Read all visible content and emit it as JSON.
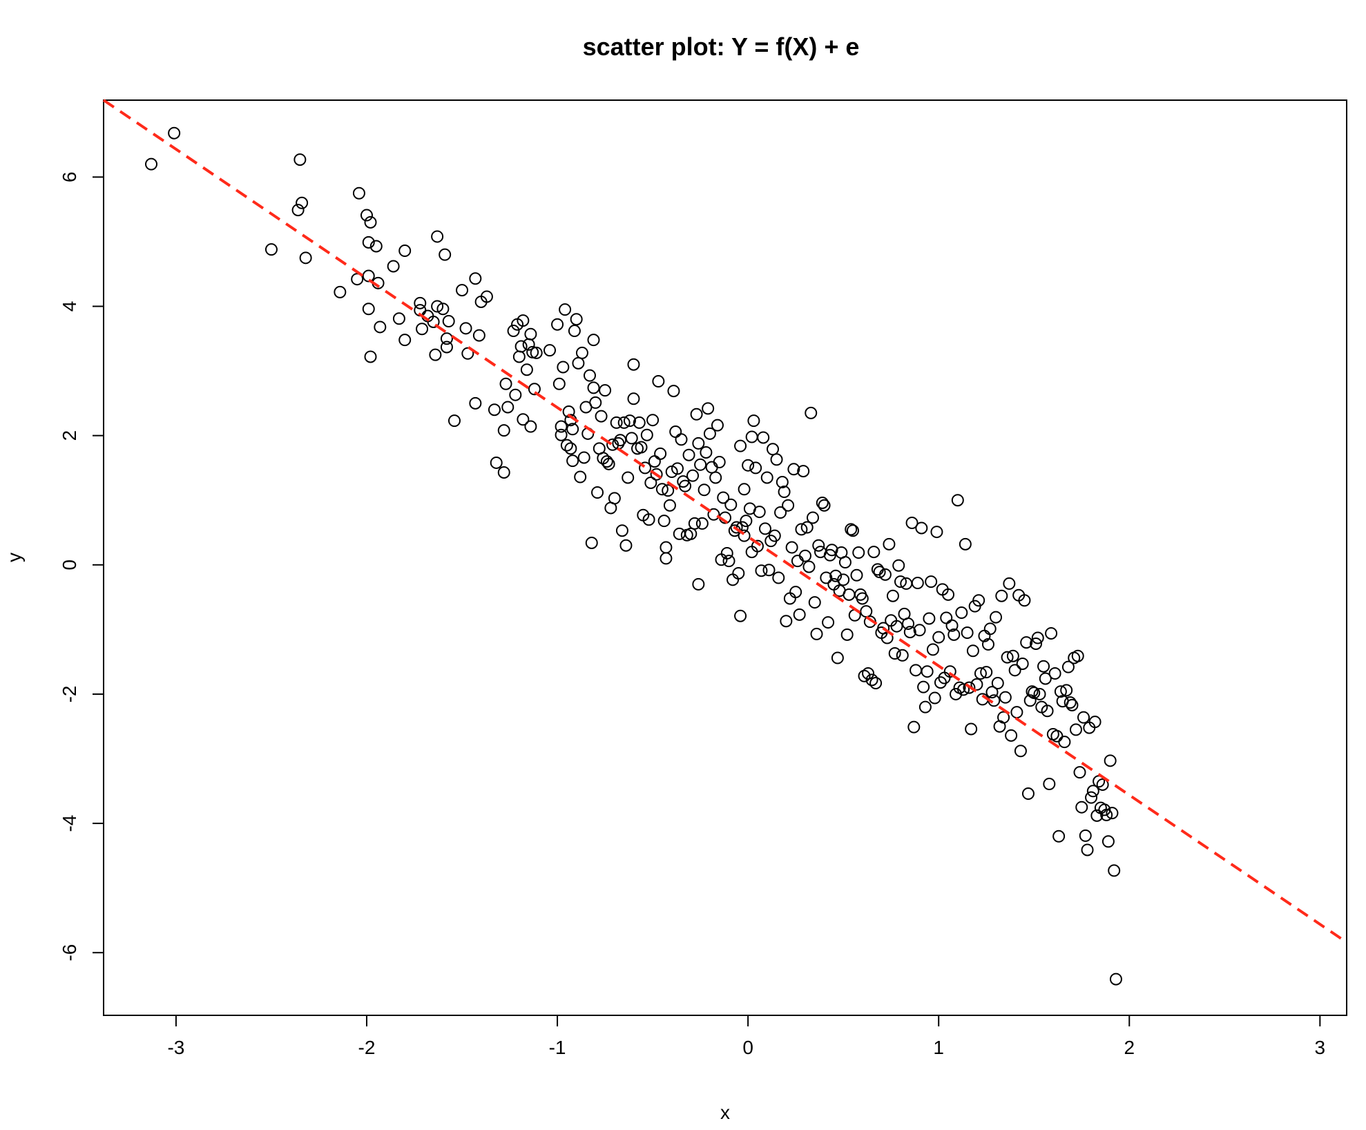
{
  "chart_data": {
    "type": "scatter",
    "title": "scatter plot: Y = f(X) + e",
    "xlabel": "x",
    "ylabel": "y",
    "xlim": [
      -3.38,
      3.14
    ],
    "ylim": [
      -6.97,
      7.19
    ],
    "x_ticks": [
      -3,
      -2,
      -1,
      0,
      1,
      2,
      3
    ],
    "y_ticks": [
      -6,
      -4,
      -2,
      0,
      2,
      4,
      6
    ],
    "x_tick_labels": [
      "-3",
      "-2",
      "-1",
      "0",
      "1",
      "2",
      "3"
    ],
    "y_tick_labels": [
      "-6",
      "-4",
      "-2",
      "0",
      "2",
      "4",
      "6"
    ],
    "grid": false,
    "points_color": "#000000",
    "line": {
      "style": "dashed",
      "color": "#ff2a1a",
      "points": [
        [
          -3.38,
          7.19
        ],
        [
          3.14,
          -5.84
        ]
      ]
    },
    "points": [
      [
        -3.13,
        6.2
      ],
      [
        -3.01,
        6.68
      ],
      [
        -2.5,
        4.88
      ],
      [
        -2.35,
        6.27
      ],
      [
        -2.36,
        5.49
      ],
      [
        -2.34,
        5.6
      ],
      [
        -2.32,
        4.75
      ],
      [
        -2.14,
        4.22
      ],
      [
        -2.05,
        4.42
      ],
      [
        -2.04,
        5.75
      ],
      [
        -2.0,
        5.41
      ],
      [
        -1.98,
        5.3
      ],
      [
        -1.99,
        4.99
      ],
      [
        -1.99,
        4.47
      ],
      [
        -1.99,
        3.96
      ],
      [
        -1.98,
        3.22
      ],
      [
        -1.95,
        4.93
      ],
      [
        -1.94,
        4.36
      ],
      [
        -1.93,
        3.68
      ],
      [
        -1.86,
        4.62
      ],
      [
        -1.83,
        3.81
      ],
      [
        -1.8,
        4.86
      ],
      [
        -1.8,
        3.48
      ],
      [
        -1.72,
        3.94
      ],
      [
        -1.72,
        4.05
      ],
      [
        -1.71,
        3.65
      ],
      [
        -1.68,
        3.85
      ],
      [
        -1.65,
        3.76
      ],
      [
        -1.64,
        3.25
      ],
      [
        -1.63,
        4.0
      ],
      [
        -1.6,
        3.96
      ],
      [
        -1.63,
        5.08
      ],
      [
        -1.59,
        4.8
      ],
      [
        -1.58,
        3.5
      ],
      [
        -1.58,
        3.37
      ],
      [
        -1.57,
        3.77
      ],
      [
        -1.54,
        2.23
      ],
      [
        -1.5,
        4.25
      ],
      [
        -1.48,
        3.66
      ],
      [
        -1.47,
        3.27
      ],
      [
        -1.43,
        4.43
      ],
      [
        -1.41,
        3.55
      ],
      [
        -1.4,
        4.07
      ],
      [
        -1.37,
        4.15
      ],
      [
        -1.43,
        2.5
      ],
      [
        -1.33,
        2.4
      ],
      [
        -1.32,
        1.58
      ],
      [
        -1.28,
        1.43
      ],
      [
        -1.28,
        2.08
      ],
      [
        -1.27,
        2.8
      ],
      [
        -1.26,
        2.44
      ],
      [
        -1.23,
        3.62
      ],
      [
        -1.22,
        2.63
      ],
      [
        -1.21,
        3.72
      ],
      [
        -1.2,
        3.22
      ],
      [
        -1.19,
        3.38
      ],
      [
        -1.18,
        3.78
      ],
      [
        -1.18,
        2.25
      ],
      [
        -1.16,
        3.02
      ],
      [
        -1.15,
        3.41
      ],
      [
        -1.14,
        3.57
      ],
      [
        -1.13,
        3.29
      ],
      [
        -1.14,
        2.14
      ],
      [
        -1.12,
        2.72
      ],
      [
        -1.11,
        3.28
      ],
      [
        -1.04,
        3.32
      ],
      [
        -1.0,
        3.72
      ],
      [
        -0.99,
        2.8
      ],
      [
        -0.98,
        2.14
      ],
      [
        -0.98,
        2.01
      ],
      [
        -0.97,
        3.06
      ],
      [
        -0.96,
        3.95
      ],
      [
        -0.95,
        1.85
      ],
      [
        -0.94,
        2.37
      ],
      [
        -0.93,
        1.8
      ],
      [
        -0.93,
        2.24
      ],
      [
        -0.92,
        2.1
      ],
      [
        -0.92,
        1.61
      ],
      [
        -0.91,
        3.62
      ],
      [
        -0.9,
        3.8
      ],
      [
        -0.89,
        3.12
      ],
      [
        -0.88,
        1.36
      ],
      [
        -0.87,
        3.28
      ],
      [
        -0.86,
        1.66
      ],
      [
        -0.85,
        2.44
      ],
      [
        -0.84,
        2.03
      ],
      [
        -0.83,
        2.93
      ],
      [
        -0.82,
        0.34
      ],
      [
        -0.81,
        2.74
      ],
      [
        -0.81,
        3.48
      ],
      [
        -0.8,
        2.51
      ],
      [
        -0.79,
        1.12
      ],
      [
        -0.78,
        1.8
      ],
      [
        -0.77,
        2.3
      ],
      [
        -0.76,
        1.65
      ],
      [
        -0.75,
        2.7
      ],
      [
        -0.74,
        1.6
      ],
      [
        -0.73,
        1.56
      ],
      [
        -0.72,
        0.88
      ],
      [
        -0.71,
        1.86
      ],
      [
        -0.7,
        1.03
      ],
      [
        -0.69,
        2.2
      ],
      [
        -0.68,
        1.88
      ],
      [
        -0.67,
        1.93
      ],
      [
        -0.66,
        0.53
      ],
      [
        -0.65,
        2.2
      ],
      [
        -0.64,
        0.3
      ],
      [
        -0.63,
        1.35
      ],
      [
        -0.62,
        2.23
      ],
      [
        -0.61,
        1.96
      ],
      [
        -0.6,
        2.57
      ],
      [
        -0.6,
        3.1
      ],
      [
        -0.58,
        1.8
      ],
      [
        -0.57,
        2.2
      ],
      [
        -0.56,
        1.82
      ],
      [
        -0.55,
        0.77
      ],
      [
        -0.54,
        1.5
      ],
      [
        -0.53,
        2.01
      ],
      [
        -0.52,
        0.7
      ],
      [
        -0.51,
        1.27
      ],
      [
        -0.5,
        2.24
      ],
      [
        -0.49,
        1.6
      ],
      [
        -0.48,
        1.4
      ],
      [
        -0.47,
        2.84
      ],
      [
        -0.46,
        1.72
      ],
      [
        -0.45,
        1.17
      ],
      [
        -0.44,
        0.68
      ],
      [
        -0.43,
        0.27
      ],
      [
        -0.43,
        0.1
      ],
      [
        -0.42,
        1.15
      ],
      [
        -0.41,
        0.92
      ],
      [
        -0.4,
        1.44
      ],
      [
        -0.39,
        2.69
      ],
      [
        -0.38,
        2.06
      ],
      [
        -0.37,
        1.49
      ],
      [
        -0.36,
        0.48
      ],
      [
        -0.35,
        1.94
      ],
      [
        -0.34,
        1.29
      ],
      [
        -0.33,
        1.22
      ],
      [
        -0.32,
        0.46
      ],
      [
        -0.31,
        1.7
      ],
      [
        -0.3,
        0.48
      ],
      [
        -0.29,
        1.38
      ],
      [
        -0.28,
        0.64
      ],
      [
        -0.27,
        2.33
      ],
      [
        -0.26,
        1.88
      ],
      [
        -0.26,
        -0.3
      ],
      [
        -0.25,
        1.55
      ],
      [
        -0.24,
        0.64
      ],
      [
        -0.23,
        1.16
      ],
      [
        -0.22,
        1.74
      ],
      [
        -0.21,
        2.42
      ],
      [
        -0.2,
        2.03
      ],
      [
        -0.19,
        1.51
      ],
      [
        -0.18,
        0.78
      ],
      [
        -0.17,
        1.35
      ],
      [
        -0.16,
        2.16
      ],
      [
        -0.15,
        1.59
      ],
      [
        -0.14,
        0.08
      ],
      [
        -0.13,
        1.04
      ],
      [
        -0.12,
        0.73
      ],
      [
        -0.11,
        0.18
      ],
      [
        -0.1,
        0.06
      ],
      [
        -0.09,
        0.93
      ],
      [
        -0.08,
        -0.23
      ],
      [
        -0.07,
        0.53
      ],
      [
        -0.06,
        0.58
      ],
      [
        -0.05,
        -0.13
      ],
      [
        -0.04,
        1.84
      ],
      [
        -0.04,
        -0.79
      ],
      [
        -0.03,
        0.58
      ],
      [
        -0.02,
        0.45
      ],
      [
        -0.02,
        1.17
      ],
      [
        -0.01,
        0.68
      ],
      [
        0.0,
        1.54
      ],
      [
        0.01,
        0.87
      ],
      [
        0.02,
        1.98
      ],
      [
        0.02,
        0.2
      ],
      [
        0.03,
        2.23
      ],
      [
        0.04,
        1.5
      ],
      [
        0.05,
        0.29
      ],
      [
        0.06,
        0.82
      ],
      [
        0.07,
        -0.09
      ],
      [
        0.08,
        1.97
      ],
      [
        0.09,
        0.56
      ],
      [
        0.1,
        1.35
      ],
      [
        0.11,
        -0.08
      ],
      [
        0.12,
        0.37
      ],
      [
        0.13,
        1.79
      ],
      [
        0.14,
        0.45
      ],
      [
        0.15,
        1.63
      ],
      [
        0.16,
        -0.2
      ],
      [
        0.17,
        0.81
      ],
      [
        0.18,
        1.28
      ],
      [
        0.19,
        1.13
      ],
      [
        0.2,
        -0.87
      ],
      [
        0.21,
        0.92
      ],
      [
        0.22,
        -0.52
      ],
      [
        0.23,
        0.27
      ],
      [
        0.24,
        1.48
      ],
      [
        0.25,
        -0.42
      ],
      [
        0.26,
        0.06
      ],
      [
        0.27,
        -0.77
      ],
      [
        0.28,
        0.55
      ],
      [
        0.29,
        1.45
      ],
      [
        0.3,
        0.14
      ],
      [
        0.31,
        0.58
      ],
      [
        0.32,
        -0.03
      ],
      [
        0.33,
        2.35
      ],
      [
        0.34,
        0.73
      ],
      [
        0.35,
        -0.58
      ],
      [
        0.36,
        -1.07
      ],
      [
        0.37,
        0.3
      ],
      [
        0.38,
        0.2
      ],
      [
        0.39,
        0.96
      ],
      [
        0.4,
        0.92
      ],
      [
        0.41,
        -0.2
      ],
      [
        0.42,
        -0.89
      ],
      [
        0.43,
        0.15
      ],
      [
        0.44,
        0.23
      ],
      [
        0.45,
        -0.3
      ],
      [
        0.46,
        -0.17
      ],
      [
        0.47,
        -1.44
      ],
      [
        0.48,
        -0.4
      ],
      [
        0.49,
        0.19
      ],
      [
        0.5,
        -0.23
      ],
      [
        0.51,
        0.04
      ],
      [
        0.52,
        -1.08
      ],
      [
        0.53,
        -0.46
      ],
      [
        0.54,
        0.55
      ],
      [
        0.55,
        0.53
      ],
      [
        0.56,
        -0.78
      ],
      [
        0.57,
        -0.16
      ],
      [
        0.58,
        0.19
      ],
      [
        0.59,
        -0.46
      ],
      [
        0.6,
        -0.52
      ],
      [
        0.61,
        -1.72
      ],
      [
        0.62,
        -0.72
      ],
      [
        0.63,
        -1.68
      ],
      [
        0.64,
        -0.88
      ],
      [
        0.65,
        -1.78
      ],
      [
        0.66,
        0.2
      ],
      [
        0.67,
        -1.83
      ],
      [
        0.68,
        -0.07
      ],
      [
        0.69,
        -0.11
      ],
      [
        0.7,
        -1.05
      ],
      [
        0.71,
        -0.98
      ],
      [
        0.72,
        -0.15
      ],
      [
        0.73,
        -1.13
      ],
      [
        0.74,
        0.32
      ],
      [
        0.75,
        -0.86
      ],
      [
        0.76,
        -0.48
      ],
      [
        0.77,
        -1.37
      ],
      [
        0.78,
        -0.95
      ],
      [
        0.79,
        -0.01
      ],
      [
        0.8,
        -0.26
      ],
      [
        0.81,
        -1.4
      ],
      [
        0.82,
        -0.76
      ],
      [
        0.83,
        -0.29
      ],
      [
        0.84,
        -0.91
      ],
      [
        0.85,
        -1.04
      ],
      [
        0.86,
        0.65
      ],
      [
        0.87,
        -2.51
      ],
      [
        0.88,
        -1.63
      ],
      [
        0.89,
        -0.28
      ],
      [
        0.9,
        -1.01
      ],
      [
        0.91,
        0.57
      ],
      [
        0.92,
        -1.89
      ],
      [
        0.93,
        -2.2
      ],
      [
        0.94,
        -1.65
      ],
      [
        0.95,
        -0.83
      ],
      [
        0.96,
        -0.26
      ],
      [
        0.97,
        -1.31
      ],
      [
        0.98,
        -2.06
      ],
      [
        0.99,
        0.51
      ],
      [
        1.0,
        -1.12
      ],
      [
        1.01,
        -1.82
      ],
      [
        1.02,
        -0.38
      ],
      [
        1.03,
        -1.75
      ],
      [
        1.04,
        -0.82
      ],
      [
        1.05,
        -0.46
      ],
      [
        1.06,
        -1.65
      ],
      [
        1.07,
        -0.94
      ],
      [
        1.08,
        -1.08
      ],
      [
        1.09,
        -2.0
      ],
      [
        1.1,
        1.0
      ],
      [
        1.11,
        -1.9
      ],
      [
        1.12,
        -0.74
      ],
      [
        1.13,
        -1.93
      ],
      [
        1.14,
        0.32
      ],
      [
        1.15,
        -1.05
      ],
      [
        1.16,
        -1.9
      ],
      [
        1.17,
        -2.54
      ],
      [
        1.18,
        -1.33
      ],
      [
        1.19,
        -0.64
      ],
      [
        1.2,
        -1.85
      ],
      [
        1.21,
        -0.55
      ],
      [
        1.22,
        -1.68
      ],
      [
        1.23,
        -2.08
      ],
      [
        1.24,
        -1.1
      ],
      [
        1.25,
        -1.66
      ],
      [
        1.26,
        -1.23
      ],
      [
        1.27,
        -0.99
      ],
      [
        1.28,
        -1.97
      ],
      [
        1.29,
        -2.1
      ],
      [
        1.3,
        -0.81
      ],
      [
        1.31,
        -1.83
      ],
      [
        1.32,
        -2.5
      ],
      [
        1.33,
        -0.48
      ],
      [
        1.34,
        -2.36
      ],
      [
        1.35,
        -2.05
      ],
      [
        1.36,
        -1.43
      ],
      [
        1.37,
        -0.29
      ],
      [
        1.38,
        -2.64
      ],
      [
        1.39,
        -1.41
      ],
      [
        1.4,
        -1.63
      ],
      [
        1.41,
        -2.28
      ],
      [
        1.42,
        -0.47
      ],
      [
        1.43,
        -2.88
      ],
      [
        1.44,
        -1.53
      ],
      [
        1.45,
        -0.55
      ],
      [
        1.46,
        -1.2
      ],
      [
        1.47,
        -3.54
      ],
      [
        1.48,
        -2.1
      ],
      [
        1.49,
        -1.96
      ],
      [
        1.5,
        -1.98
      ],
      [
        1.51,
        -1.22
      ],
      [
        1.52,
        -1.13
      ],
      [
        1.53,
        -2.0
      ],
      [
        1.54,
        -2.2
      ],
      [
        1.55,
        -1.57
      ],
      [
        1.56,
        -1.76
      ],
      [
        1.57,
        -2.26
      ],
      [
        1.58,
        -3.39
      ],
      [
        1.59,
        -1.06
      ],
      [
        1.6,
        -2.62
      ],
      [
        1.61,
        -1.68
      ],
      [
        1.62,
        -2.65
      ],
      [
        1.63,
        -4.2
      ],
      [
        1.64,
        -1.96
      ],
      [
        1.65,
        -2.11
      ],
      [
        1.66,
        -2.74
      ],
      [
        1.67,
        -1.94
      ],
      [
        1.68,
        -1.58
      ],
      [
        1.69,
        -2.13
      ],
      [
        1.7,
        -2.17
      ],
      [
        1.71,
        -1.44
      ],
      [
        1.72,
        -2.55
      ],
      [
        1.73,
        -1.41
      ],
      [
        1.74,
        -3.21
      ],
      [
        1.75,
        -3.75
      ],
      [
        1.76,
        -2.36
      ],
      [
        1.77,
        -4.19
      ],
      [
        1.78,
        -4.41
      ],
      [
        1.79,
        -2.52
      ],
      [
        1.8,
        -3.6
      ],
      [
        1.81,
        -3.5
      ],
      [
        1.82,
        -2.43
      ],
      [
        1.83,
        -3.88
      ],
      [
        1.84,
        -3.35
      ],
      [
        1.85,
        -3.76
      ],
      [
        1.86,
        -3.4
      ],
      [
        1.87,
        -3.79
      ],
      [
        1.88,
        -3.87
      ],
      [
        1.89,
        -4.28
      ],
      [
        1.9,
        -3.03
      ],
      [
        1.91,
        -3.84
      ],
      [
        1.92,
        -4.73
      ],
      [
        1.93,
        -6.41
      ]
    ]
  }
}
